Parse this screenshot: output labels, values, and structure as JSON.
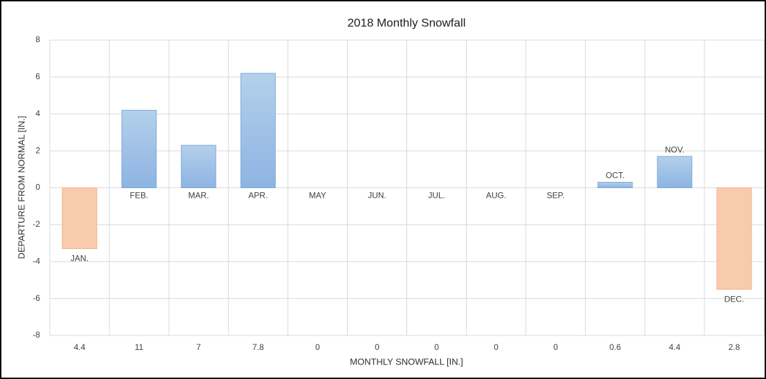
{
  "chart_data": {
    "type": "bar",
    "title": "2018 Monthly Snowfall",
    "y_label": "DEPARTURE  FROM NORMAL [IN.]",
    "x_label": "MONTHLY SNOWFALL [IN.]",
    "categories": [
      "4.4",
      "11",
      "7",
      "7.8",
      "0",
      "0",
      "0",
      "0",
      "0",
      "0.6",
      "4.4",
      "2.8"
    ],
    "bar_labels": [
      "JAN.",
      "FEB.",
      "MAR.",
      "APR.",
      "MAY",
      "JUN.",
      "JUL.",
      "AUG.",
      "SEP.",
      "OCT.",
      "NOV.",
      "DEC."
    ],
    "values": [
      -3.3,
      4.2,
      2.3,
      6.2,
      0,
      0,
      0,
      0,
      0,
      0.3,
      1.7,
      -5.5
    ],
    "positive_color": "#9dc3e6",
    "negative_color": "#f8cbad",
    "ylim": [
      -8,
      8
    ],
    "yticks": [
      -8,
      -6,
      -4,
      -2,
      0,
      2,
      4,
      6,
      8
    ],
    "grid": true
  }
}
